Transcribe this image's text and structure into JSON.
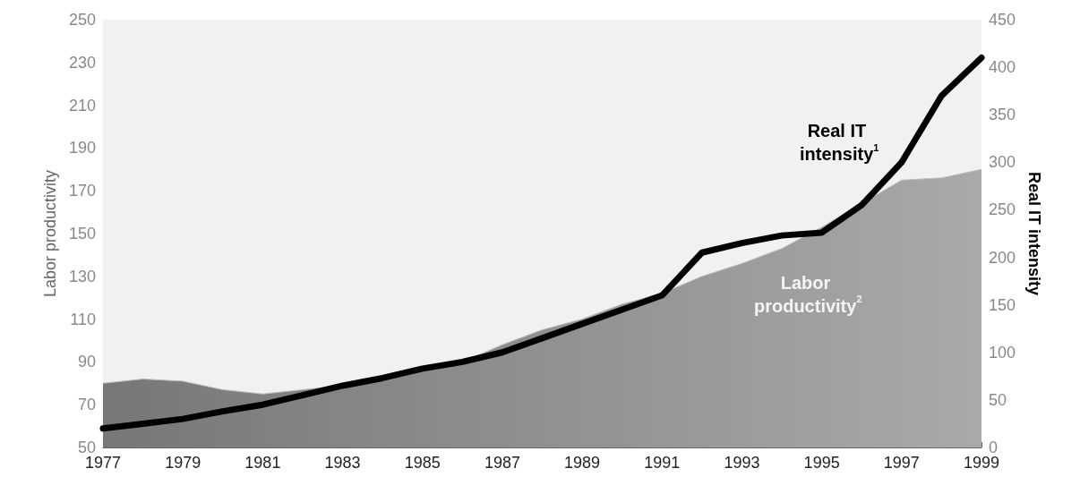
{
  "chart_data": {
    "type": "area",
    "x": [
      1977,
      1978,
      1979,
      1980,
      1981,
      1982,
      1983,
      1984,
      1985,
      1986,
      1987,
      1988,
      1989,
      1990,
      1991,
      1992,
      1993,
      1994,
      1995,
      1996,
      1997,
      1998,
      1999
    ],
    "series": [
      {
        "name": "Labor productivity$^{2}$",
        "color": "#a9a9a9",
        "values": [
          80,
          82,
          81,
          77,
          75,
          77,
          79,
          83,
          86,
          90,
          98,
          105,
          110,
          117,
          122,
          130,
          136,
          143,
          153,
          164,
          175,
          176,
          180
        ]
      },
      {
        "name": "Real IT intensity$^{1}$",
        "type": "line",
        "axis": "y2",
        "color": "#000000",
        "values": [
          20,
          25,
          30,
          38,
          45,
          55,
          65,
          73,
          83,
          90,
          100,
          115,
          130,
          145,
          160,
          205,
          215,
          223,
          226,
          255,
          300,
          370,
          410
        ]
      }
    ],
    "ylabel": "Labor productivity",
    "y2label": "Real IT intensity",
    "xlim": [
      1977,
      1999
    ],
    "xticks": [
      1977,
      1979,
      1981,
      1983,
      1985,
      1987,
      1989,
      1991,
      1993,
      1995,
      1997,
      1999
    ],
    "ylim": [
      50,
      250
    ],
    "yticks": [
      50,
      70,
      90,
      110,
      130,
      150,
      170,
      190,
      210,
      230,
      250
    ],
    "y2lim": [
      0,
      450
    ],
    "y2ticks": [
      0,
      50,
      100,
      150,
      200,
      250,
      300,
      350,
      400,
      450
    ],
    "grid": false,
    "legend": false,
    "marker": "none",
    "line_style": "solid"
  }
}
